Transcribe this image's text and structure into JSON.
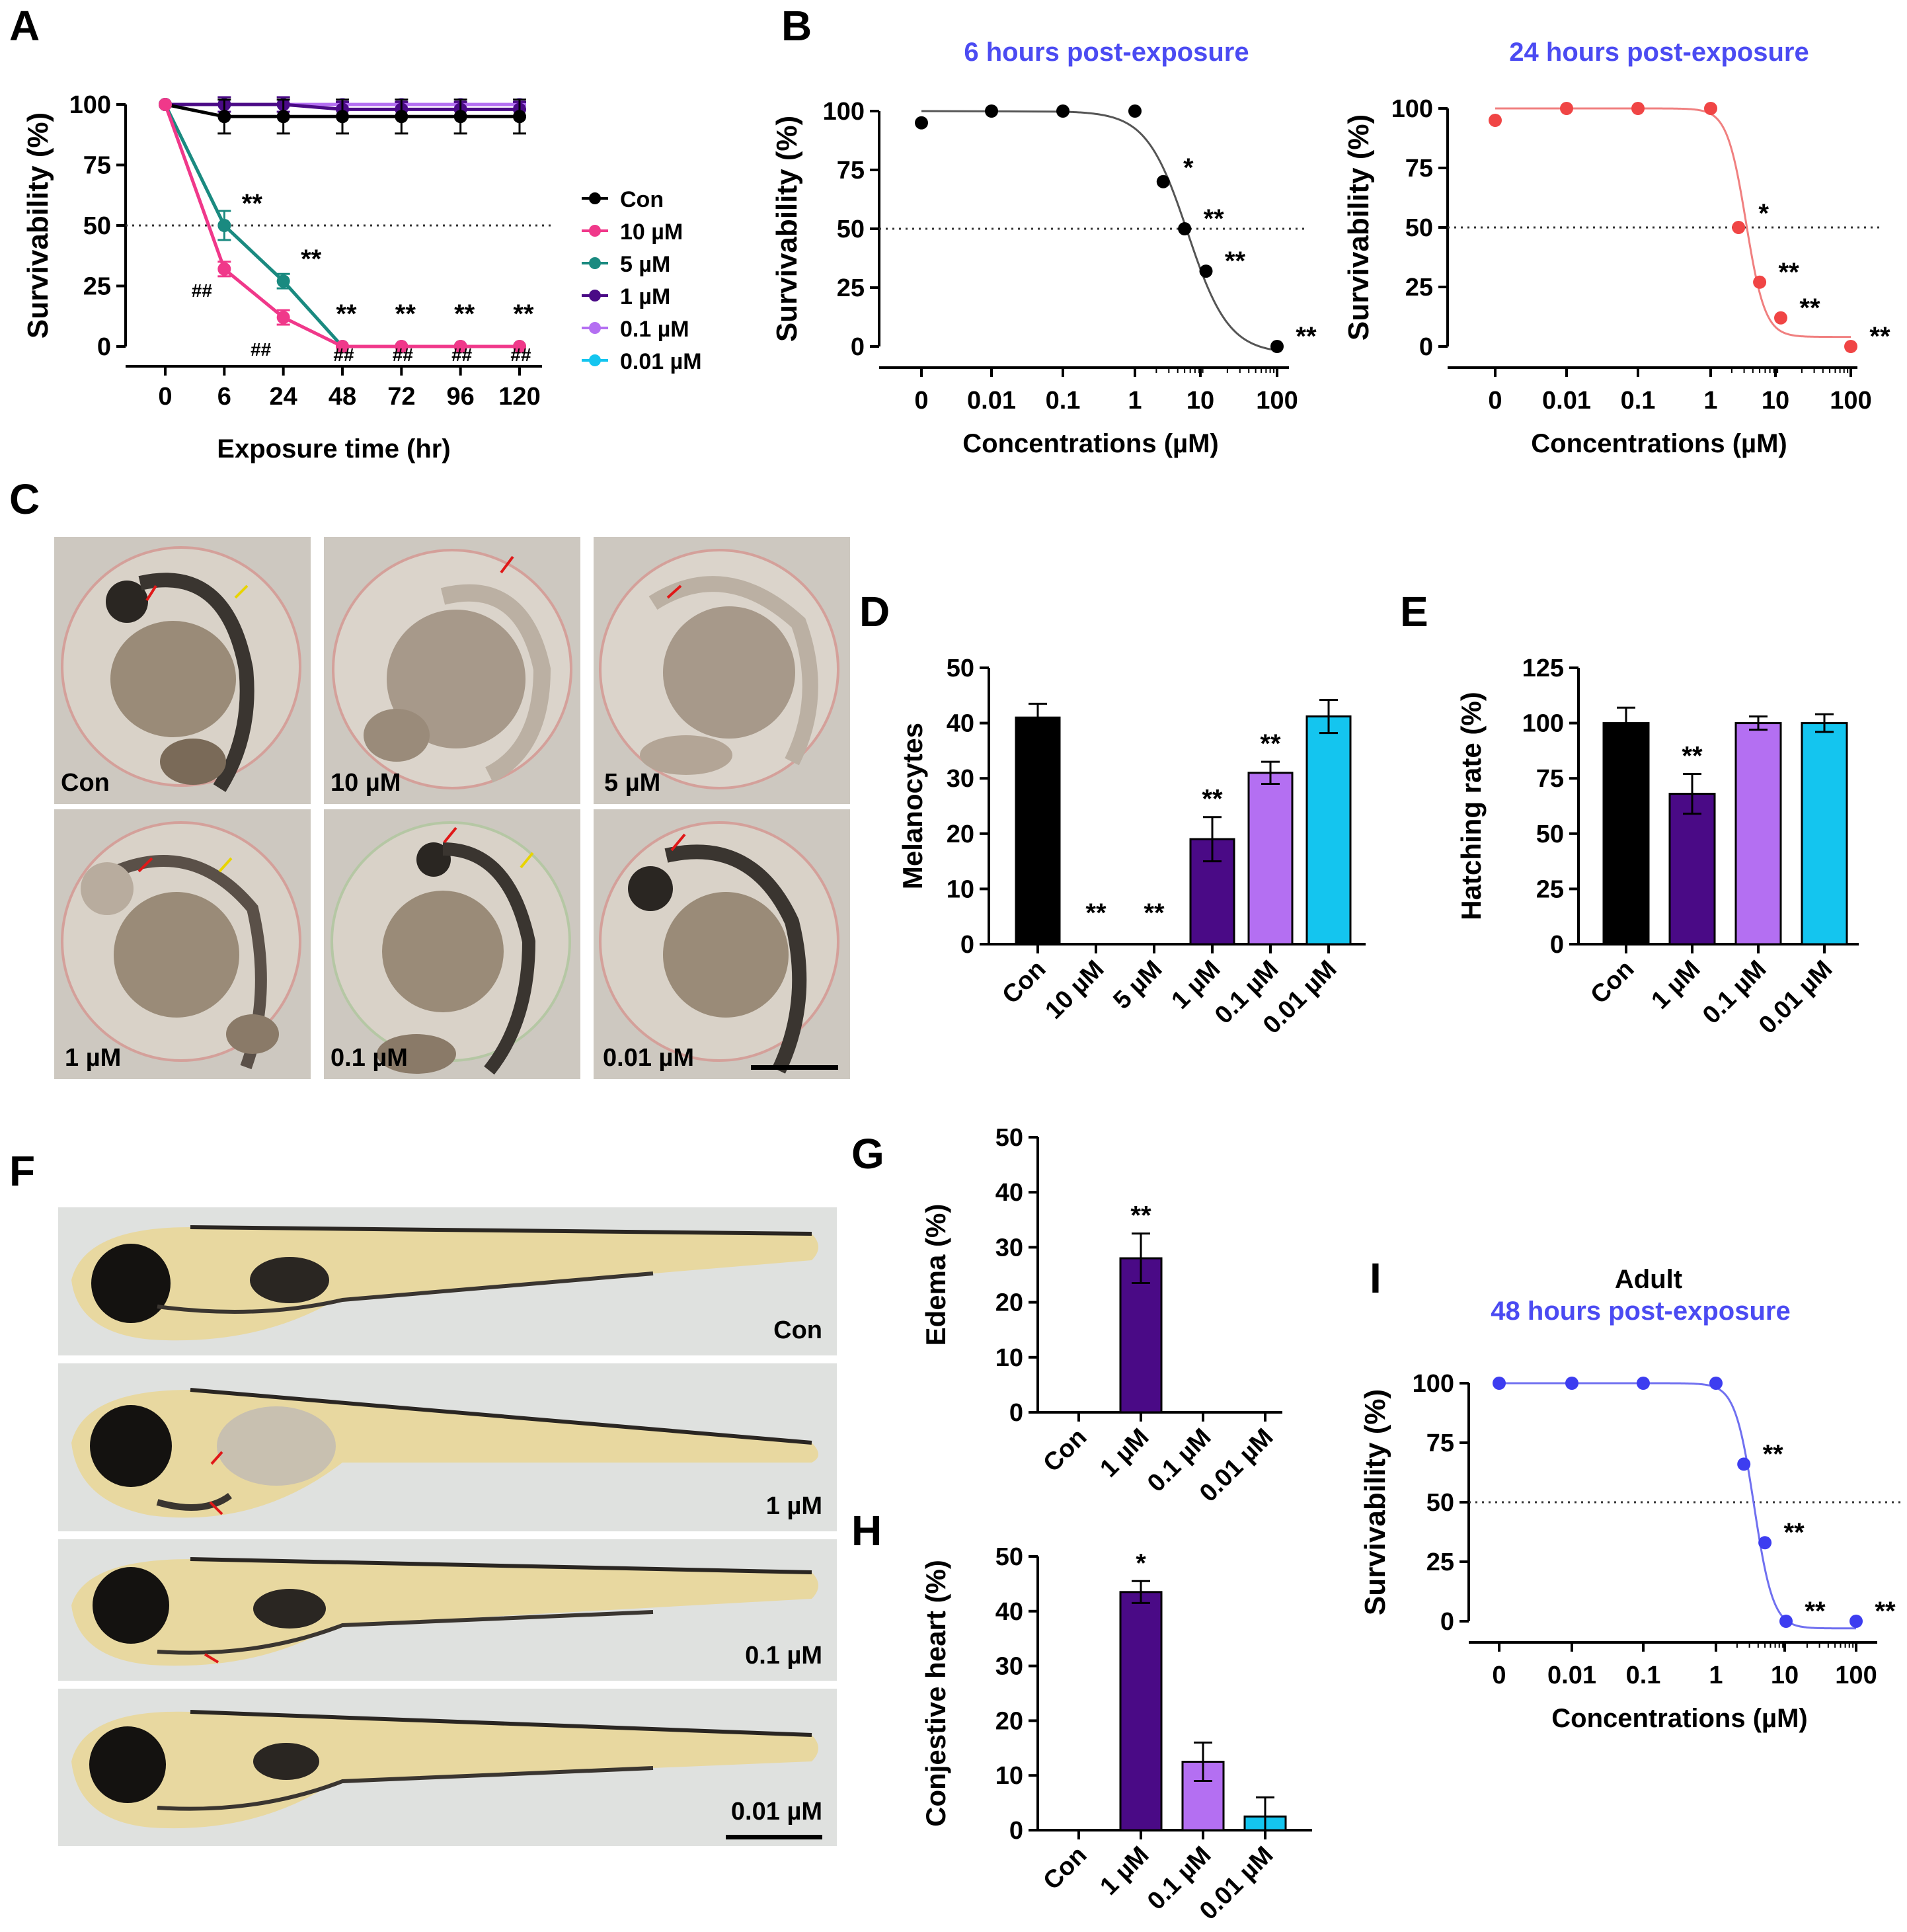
{
  "panel_labels": {
    "A": "A",
    "B": "B",
    "C": "C",
    "D": "D",
    "E": "E",
    "F": "F",
    "G": "G",
    "H": "H",
    "I": "I"
  },
  "embryo_labels": [
    "Con",
    "10 µM",
    "5 µM",
    "1 µM",
    "0.1 µM",
    "0.01 µM"
  ],
  "larva_labels": [
    "Con",
    "1 µM",
    "0.1 µM",
    "0.01 µM"
  ],
  "colors": {
    "con": "#000000",
    "c10": "#f0388a",
    "c5": "#1a8a80",
    "c1": "#4a0a86",
    "c01": "#b46ff2",
    "c001": "#14c5ef",
    "titleBlue": "#4b4bf2",
    "curveBlack": "#555555",
    "curveRed": "#f08080",
    "dotRed": "#f04545",
    "curveBlue": "#7070f0",
    "dotBlue": "#3d3df0"
  },
  "chart_data": [
    {
      "id": "A",
      "type": "line",
      "xlabel": "Exposure time (hr)",
      "ylabel": "Survivability (%)",
      "x": [
        "0",
        "6",
        "24",
        "48",
        "72",
        "96",
        "120"
      ],
      "ylim": [
        0,
        100
      ],
      "yticks": [
        0,
        25,
        50,
        75,
        100
      ],
      "reference_line": 50,
      "series": [
        {
          "name": "Con",
          "color": "#000000",
          "values": [
            100,
            95,
            95,
            95,
            95,
            95,
            95
          ],
          "err": [
            0,
            7,
            7,
            7,
            7,
            7,
            7
          ]
        },
        {
          "name": "10 µM",
          "color": "#f0388a",
          "values": [
            100,
            32,
            12,
            0,
            0,
            0,
            0
          ],
          "err": [
            0,
            3,
            3,
            0,
            0,
            0,
            0
          ]
        },
        {
          "name": "5 µM",
          "color": "#1a8a80",
          "values": [
            100,
            50,
            27,
            0,
            0,
            0,
            0
          ],
          "err": [
            0,
            6,
            3,
            0,
            0,
            0,
            0
          ]
        },
        {
          "name": "1 µM",
          "color": "#4a0a86",
          "values": [
            100,
            100,
            100,
            98,
            98,
            98,
            98
          ],
          "err": [
            0,
            3,
            3,
            3,
            3,
            3,
            3
          ]
        },
        {
          "name": "0.1 µM",
          "color": "#b46ff2",
          "values": [
            100,
            100,
            100,
            100,
            100,
            100,
            100
          ],
          "err": [
            0,
            0,
            0,
            0,
            0,
            0,
            0
          ]
        },
        {
          "name": "0.01 µM",
          "color": "#14c5ef",
          "values": [
            100,
            100,
            100,
            100,
            100,
            100,
            100
          ],
          "err": [
            0,
            0,
            0,
            0,
            0,
            0,
            0
          ]
        }
      ],
      "annotations": [
        {
          "x": "6",
          "y": 50,
          "text": "**",
          "series": "5 µM"
        },
        {
          "x": "24",
          "y": 27,
          "text": "**",
          "series": "5 µM"
        },
        {
          "x": "6",
          "y": 32,
          "text": "##",
          "series": "10 µM"
        },
        {
          "x": "24",
          "y": 12,
          "text": "##",
          "series": "10 µM"
        },
        {
          "x": "48",
          "text": "**"
        },
        {
          "x": "72",
          "text": "**"
        },
        {
          "x": "96",
          "text": "**"
        },
        {
          "x": "120",
          "text": "**"
        },
        {
          "x": "48",
          "text": "##"
        },
        {
          "x": "72",
          "text": "##"
        },
        {
          "x": "96",
          "text": "##"
        },
        {
          "x": "120",
          "text": "##"
        }
      ]
    },
    {
      "id": "B1",
      "type": "scatter",
      "title": "6 hours post-exposure",
      "xlabel": "Concentrations (µM)",
      "ylabel": "Survivability (%)",
      "xticks": [
        "0",
        "0.01",
        "0.1",
        "1",
        "10",
        "100"
      ],
      "ylim": [
        0,
        100
      ],
      "yticks": [
        0,
        25,
        50,
        75,
        100
      ],
      "reference_line": 50,
      "points": [
        {
          "x": "0",
          "y": 95
        },
        {
          "x": "0.01",
          "y": 100
        },
        {
          "x": "0.1",
          "y": 100
        },
        {
          "x": "1",
          "y": 100
        },
        {
          "x": "2.5",
          "y": 70,
          "label": "*"
        },
        {
          "x": "5",
          "y": 50,
          "label": "**"
        },
        {
          "x": "10",
          "y": 32,
          "label": "**"
        },
        {
          "x": "100",
          "y": 0,
          "label": "**"
        }
      ],
      "fit": {
        "top": 100,
        "bottom": -3,
        "ic50": 5.5,
        "hill": 1.5
      },
      "color": "#000000",
      "curveColor": "#555555"
    },
    {
      "id": "B2",
      "type": "scatter",
      "title": "24 hours post-exposure",
      "xlabel": "Concentrations (µM)",
      "ylabel": "Survivability (%)",
      "xticks": [
        "0",
        "0.01",
        "0.1",
        "1",
        "10",
        "100"
      ],
      "ylim": [
        0,
        100
      ],
      "yticks": [
        0,
        25,
        50,
        75,
        100
      ],
      "reference_line": 50,
      "points": [
        {
          "x": "0",
          "y": 95
        },
        {
          "x": "0.01",
          "y": 100
        },
        {
          "x": "0.1",
          "y": 100
        },
        {
          "x": "1",
          "y": 100
        },
        {
          "x": "2.5",
          "y": 50,
          "label": "*"
        },
        {
          "x": "5",
          "y": 27,
          "label": "**"
        },
        {
          "x": "10",
          "y": 12,
          "label": "**"
        },
        {
          "x": "100",
          "y": 0,
          "label": "**"
        }
      ],
      "fit": {
        "top": 100,
        "bottom": 4,
        "ic50": 3.2,
        "hill": 3.2
      },
      "color": "#f04545",
      "curveColor": "#f08080"
    },
    {
      "id": "D",
      "type": "bar",
      "ylabel": "Melanocytes",
      "categories": [
        "Con",
        "10 µM",
        "5 µM",
        "1 µM",
        "0.1 µM",
        "0.01 µM"
      ],
      "values": [
        41,
        0,
        0,
        19,
        31,
        41.2
      ],
      "err": [
        2.5,
        0,
        0,
        4,
        2,
        3
      ],
      "sig": [
        "",
        "**",
        "**",
        "**",
        "**",
        ""
      ],
      "ylim": [
        0,
        50
      ],
      "yticks": [
        0,
        10,
        20,
        30,
        40,
        50
      ],
      "colors": [
        "#000000",
        "#f0388a",
        "#1a8a80",
        "#4a0a86",
        "#b46ff2",
        "#14c5ef"
      ]
    },
    {
      "id": "E",
      "type": "bar",
      "ylabel": "Hatching rate (%)",
      "categories": [
        "Con",
        "1 µM",
        "0.1 µM",
        "0.01 µM"
      ],
      "values": [
        100,
        68,
        100,
        100
      ],
      "err": [
        7,
        9,
        3,
        4
      ],
      "sig": [
        "",
        "**",
        "",
        ""
      ],
      "ylim": [
        0,
        125
      ],
      "yticks": [
        0,
        25,
        50,
        75,
        100,
        125
      ],
      "colors": [
        "#000000",
        "#4a0a86",
        "#b46ff2",
        "#14c5ef"
      ]
    },
    {
      "id": "G",
      "type": "bar",
      "ylabel": "Edema (%)",
      "categories": [
        "Con",
        "1 µM",
        "0.1 µM",
        "0.01 µM"
      ],
      "values": [
        0,
        28,
        0,
        0
      ],
      "err": [
        0,
        4.5,
        0,
        0
      ],
      "sig": [
        "",
        "**",
        "",
        ""
      ],
      "ylim": [
        0,
        50
      ],
      "yticks": [
        0,
        10,
        20,
        30,
        40,
        50
      ],
      "colors": [
        "#000000",
        "#4a0a86",
        "#b46ff2",
        "#14c5ef"
      ]
    },
    {
      "id": "H",
      "type": "bar",
      "ylabel": "Conjestive heart (%)",
      "categories": [
        "Con",
        "1 µM",
        "0.1 µM",
        "0.01 µM"
      ],
      "values": [
        0,
        43.5,
        12.5,
        2.5
      ],
      "err": [
        0,
        2,
        3.5,
        3.5
      ],
      "sig": [
        "",
        "*",
        "",
        ""
      ],
      "ylim": [
        0,
        50
      ],
      "yticks": [
        0,
        10,
        20,
        30,
        40,
        50
      ],
      "colors": [
        "#000000",
        "#4a0a86",
        "#b46ff2",
        "#14c5ef"
      ]
    },
    {
      "id": "I",
      "type": "scatter",
      "title": "Adult",
      "subtitle": "48 hours post-exposure",
      "xlabel": "Concentrations (µM)",
      "ylabel": "Survivability (%)",
      "xticks": [
        "0",
        "0.01",
        "0.1",
        "1",
        "10",
        "100"
      ],
      "ylim": [
        0,
        100
      ],
      "yticks": [
        0,
        25,
        50,
        75,
        100
      ],
      "reference_line": 50,
      "points": [
        {
          "x": "0",
          "y": 100
        },
        {
          "x": "0.01",
          "y": 100
        },
        {
          "x": "0.1",
          "y": 100
        },
        {
          "x": "1",
          "y": 100
        },
        {
          "x": "2.5",
          "y": 66,
          "label": "**"
        },
        {
          "x": "5",
          "y": 33,
          "label": "**"
        },
        {
          "x": "10",
          "y": 0,
          "label": "**"
        },
        {
          "x": "100",
          "y": 0,
          "label": "**"
        }
      ],
      "fit": {
        "top": 100,
        "bottom": -3,
        "ic50": 3.5,
        "hill": 3.2
      },
      "color": "#3d3df0",
      "curveColor": "#7070f0"
    }
  ]
}
